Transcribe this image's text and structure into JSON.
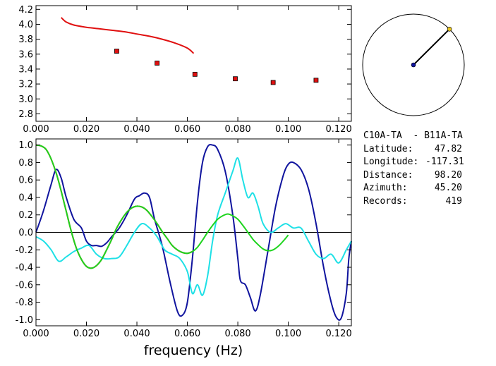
{
  "chart_data": [
    {
      "id": "top",
      "type": "scatter",
      "xlim": [
        0,
        0.125
      ],
      "ylim": [
        2.7,
        4.25
      ],
      "xticks": [
        "0.000",
        "0.020",
        "0.040",
        "0.060",
        "0.080",
        "0.100",
        "0.120"
      ],
      "yticks": [
        "2.8",
        "3.0",
        "3.2",
        "3.4",
        "3.6",
        "3.8",
        "4.0",
        "4.2"
      ],
      "series": [
        {
          "kind": "line",
          "color": "#e01010",
          "x": [
            0.01,
            0.012,
            0.015,
            0.02,
            0.025,
            0.03,
            0.035,
            0.04,
            0.045,
            0.05,
            0.055,
            0.06,
            0.0625
          ],
          "y": [
            4.09,
            4.03,
            3.99,
            3.96,
            3.94,
            3.92,
            3.9,
            3.87,
            3.84,
            3.8,
            3.75,
            3.68,
            3.61
          ]
        },
        {
          "kind": "points",
          "color": "#e01010",
          "x": [
            0.032,
            0.048,
            0.063,
            0.079,
            0.094,
            0.111
          ],
          "y": [
            3.64,
            3.48,
            3.33,
            3.27,
            3.22,
            3.25
          ]
        }
      ]
    },
    {
      "id": "bottom",
      "type": "line",
      "xlim": [
        0,
        0.125
      ],
      "ylim": [
        -1.07,
        1.07
      ],
      "xticks": [
        "0.000",
        "0.020",
        "0.040",
        "0.060",
        "0.080",
        "0.100",
        "0.120"
      ],
      "yticks": [
        "1.0",
        "0.8",
        "0.6",
        "0.4",
        "0.2",
        "0.0",
        "-0.2",
        "-0.4",
        "-0.6",
        "-0.8",
        "-1.0"
      ],
      "xlabel": "frequency (Hz)",
      "series": [
        {
          "color": "#10149e",
          "x": [
            0,
            0.003,
            0.006,
            0.008,
            0.01,
            0.012,
            0.015,
            0.018,
            0.02,
            0.022,
            0.024,
            0.026,
            0.028,
            0.03,
            0.033,
            0.036,
            0.039,
            0.041,
            0.043,
            0.045,
            0.047,
            0.05,
            0.053,
            0.056,
            0.058,
            0.06,
            0.062,
            0.064,
            0.066,
            0.068,
            0.07,
            0.072,
            0.075,
            0.078,
            0.08,
            0.081,
            0.083,
            0.085,
            0.087,
            0.089,
            0.092,
            0.095,
            0.098,
            0.1,
            0.102,
            0.105,
            0.108,
            0.111,
            0.114,
            0.117,
            0.119,
            0.121,
            0.123,
            0.124,
            0.125
          ],
          "y": [
            0,
            0.25,
            0.55,
            0.72,
            0.62,
            0.4,
            0.15,
            0.05,
            -0.1,
            -0.15,
            -0.15,
            -0.16,
            -0.12,
            -0.05,
            0.05,
            0.2,
            0.38,
            0.42,
            0.45,
            0.4,
            0.15,
            -0.15,
            -0.55,
            -0.9,
            -0.95,
            -0.8,
            -0.3,
            0.35,
            0.8,
            0.98,
            1.0,
            0.95,
            0.7,
            0.2,
            -0.3,
            -0.55,
            -0.6,
            -0.75,
            -0.9,
            -0.7,
            -0.2,
            0.3,
            0.65,
            0.78,
            0.8,
            0.72,
            0.5,
            0.1,
            -0.4,
            -0.8,
            -0.97,
            -0.98,
            -0.7,
            -0.3,
            -0.1
          ]
        },
        {
          "color": "#1ee0e6",
          "x": [
            0,
            0.003,
            0.006,
            0.009,
            0.012,
            0.015,
            0.018,
            0.021,
            0.024,
            0.027,
            0.03,
            0.033,
            0.036,
            0.039,
            0.042,
            0.045,
            0.048,
            0.051,
            0.054,
            0.057,
            0.06,
            0.062,
            0.064,
            0.066,
            0.068,
            0.07,
            0.072,
            0.075,
            0.078,
            0.08,
            0.082,
            0.084,
            0.086,
            0.088,
            0.09,
            0.093,
            0.096,
            0.099,
            0.102,
            0.105,
            0.108,
            0.111,
            0.114,
            0.117,
            0.12,
            0.123,
            0.125
          ],
          "y": [
            -0.05,
            -0.1,
            -0.2,
            -0.33,
            -0.28,
            -0.22,
            -0.18,
            -0.15,
            -0.25,
            -0.3,
            -0.3,
            -0.28,
            -0.15,
            0.0,
            0.1,
            0.05,
            -0.05,
            -0.2,
            -0.25,
            -0.3,
            -0.45,
            -0.7,
            -0.6,
            -0.72,
            -0.5,
            -0.1,
            0.2,
            0.45,
            0.7,
            0.85,
            0.6,
            0.4,
            0.45,
            0.3,
            0.1,
            0.0,
            0.05,
            0.1,
            0.05,
            0.05,
            -0.1,
            -0.25,
            -0.3,
            -0.25,
            -0.35,
            -0.2,
            -0.1
          ]
        },
        {
          "color": "#e01010",
          "x": [
            0,
            0.002,
            0.004,
            0.006,
            0.008,
            0.01,
            0.012,
            0.014,
            0.016,
            0.018,
            0.02,
            0.022,
            0.024,
            0.026,
            0.028,
            0.03,
            0.032,
            0.034,
            0.036,
            0.038,
            0.04,
            0.042,
            0.044,
            0.046,
            0.048,
            0.05,
            0.052,
            0.054,
            0.056,
            0.058,
            0.06,
            0.062
          ],
          "y": [
            1.0,
            0.99,
            0.95,
            0.84,
            0.68,
            0.47,
            0.24,
            0.01,
            -0.18,
            -0.31,
            -0.39,
            -0.41,
            -0.38,
            -0.31,
            -0.2,
            -0.08,
            0.05,
            0.15,
            0.23,
            0.28,
            0.3,
            0.29,
            0.25,
            0.18,
            0.1,
            0.01,
            -0.07,
            -0.15,
            -0.2,
            -0.23,
            -0.24,
            -0.22
          ]
        },
        {
          "color": "#1ed41e",
          "x": [
            0,
            0.002,
            0.004,
            0.006,
            0.008,
            0.01,
            0.012,
            0.014,
            0.016,
            0.018,
            0.02,
            0.022,
            0.024,
            0.026,
            0.028,
            0.03,
            0.032,
            0.034,
            0.036,
            0.038,
            0.04,
            0.042,
            0.044,
            0.046,
            0.048,
            0.05,
            0.052,
            0.054,
            0.056,
            0.058,
            0.06,
            0.062,
            0.064,
            0.066,
            0.068,
            0.07,
            0.072,
            0.074,
            0.076,
            0.078,
            0.08,
            0.082,
            0.084,
            0.086,
            0.088,
            0.09,
            0.092,
            0.094,
            0.096,
            0.098,
            0.1
          ],
          "y": [
            1.0,
            0.99,
            0.95,
            0.84,
            0.68,
            0.47,
            0.24,
            0.01,
            -0.18,
            -0.31,
            -0.39,
            -0.41,
            -0.38,
            -0.31,
            -0.2,
            -0.08,
            0.05,
            0.15,
            0.23,
            0.28,
            0.3,
            0.29,
            0.25,
            0.18,
            0.1,
            0.01,
            -0.07,
            -0.15,
            -0.2,
            -0.23,
            -0.24,
            -0.22,
            -0.17,
            -0.09,
            0.0,
            0.08,
            0.15,
            0.19,
            0.21,
            0.19,
            0.15,
            0.08,
            0.0,
            -0.08,
            -0.14,
            -0.19,
            -0.21,
            -0.2,
            -0.16,
            -0.1,
            -0.03
          ]
        }
      ]
    }
  ],
  "compass": {
    "azimuth_deg": 45.2,
    "circle_color": "#000000",
    "line_color": "#000000",
    "center_color": "#10149e",
    "tip_color": "#e6c31e"
  },
  "info": {
    "pair": "C10A-TA  - B11A-TA",
    "rows": [
      {
        "label": "Latitude:",
        "value": "47.82"
      },
      {
        "label": "Longitude:",
        "value": "-117.31"
      },
      {
        "label": "Distance:",
        "value": "98.20"
      },
      {
        "label": "Azimuth:",
        "value": "45.20"
      },
      {
        "label": "Records:",
        "value": "419"
      }
    ]
  }
}
